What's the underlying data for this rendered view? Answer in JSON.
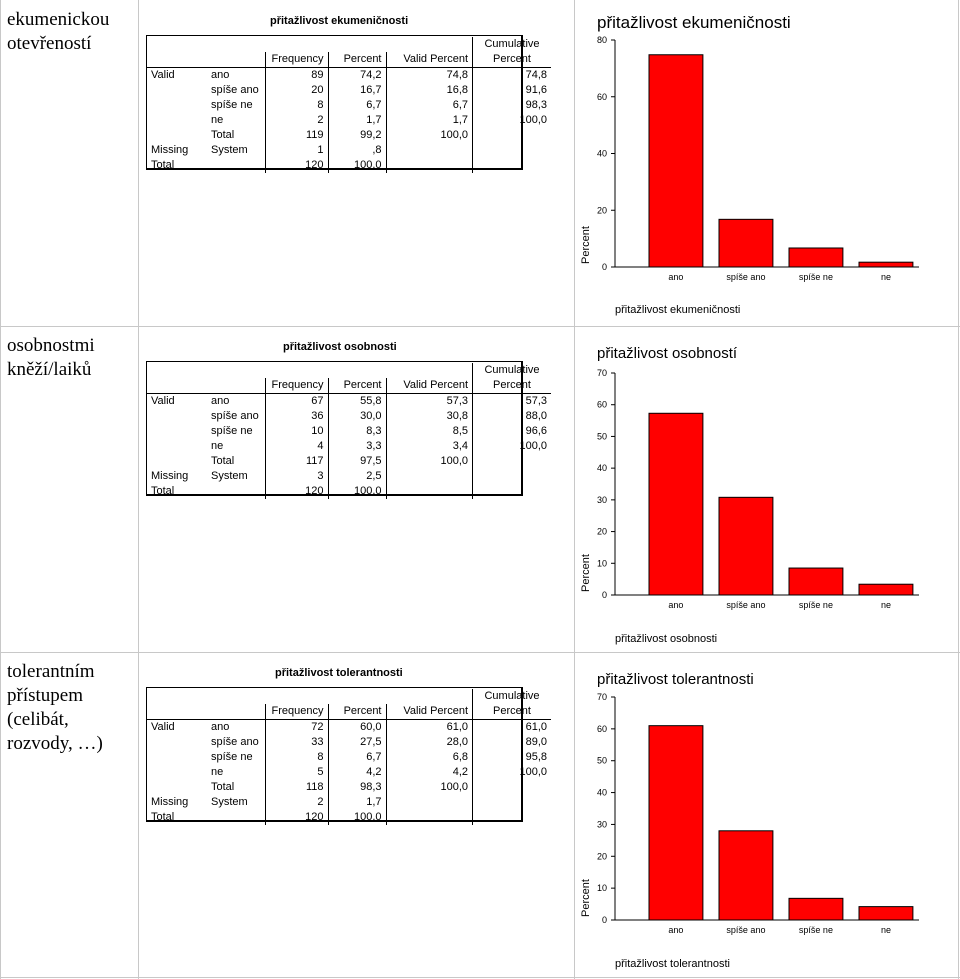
{
  "sections": [
    {
      "row_label": "ekumenickou otevřeností",
      "table": {
        "title": "přitažlivost ekumeničnosti",
        "headers": [
          "Frequency",
          "Percent",
          "Valid Percent",
          "Cumulative",
          "Percent"
        ],
        "rows": [
          [
            "Valid",
            "ano",
            "89",
            "74,2",
            "74,8",
            "74,8"
          ],
          [
            "",
            "spíše ano",
            "20",
            "16,7",
            "16,8",
            "91,6"
          ],
          [
            "",
            "spíše ne",
            "8",
            "6,7",
            "6,7",
            "98,3"
          ],
          [
            "",
            "ne",
            "2",
            "1,7",
            "1,7",
            "100,0"
          ],
          [
            "",
            "Total",
            "119",
            "99,2",
            "100,0",
            ""
          ],
          [
            "Missing",
            "System",
            "1",
            ",8",
            "",
            ""
          ],
          [
            "Total",
            "",
            "120",
            "100,0",
            "",
            ""
          ]
        ]
      },
      "chart_data": {
        "type": "bar",
        "title": "přitažlivost ekumeničnosti",
        "xlabel": "přitažlivost ekumeničnosti",
        "ylabel": "Percent",
        "categories": [
          "ano",
          "spíše ano",
          "spíše ne",
          "ne"
        ],
        "values": [
          74.8,
          16.8,
          6.7,
          1.7
        ],
        "ylim": [
          0,
          80
        ],
        "yticks": [
          "0",
          "20",
          "40",
          "60",
          "80"
        ],
        "bar_color": "#ff0000"
      }
    },
    {
      "row_label": "osobnostmi kněží/laiků",
      "table": {
        "title": "přitažlivost osobnosti",
        "headers": [
          "Frequency",
          "Percent",
          "Valid Percent",
          "Cumulative",
          "Percent"
        ],
        "rows": [
          [
            "Valid",
            "ano",
            "67",
            "55,8",
            "57,3",
            "57,3"
          ],
          [
            "",
            "spíše ano",
            "36",
            "30,0",
            "30,8",
            "88,0"
          ],
          [
            "",
            "spíše ne",
            "10",
            "8,3",
            "8,5",
            "96,6"
          ],
          [
            "",
            "ne",
            "4",
            "3,3",
            "3,4",
            "100,0"
          ],
          [
            "",
            "Total",
            "117",
            "97,5",
            "100,0",
            ""
          ],
          [
            "Missing",
            "System",
            "3",
            "2,5",
            "",
            ""
          ],
          [
            "Total",
            "",
            "120",
            "100,0",
            "",
            ""
          ]
        ]
      },
      "chart_data": {
        "type": "bar",
        "title": "přitažlivost osobností",
        "xlabel": "přitažlivost osobnosti",
        "ylabel": "Percent",
        "categories": [
          "ano",
          "spíše ano",
          "spíše ne",
          "ne"
        ],
        "values": [
          57.3,
          30.8,
          8.5,
          3.4
        ],
        "ylim": [
          0,
          70
        ],
        "yticks": [
          "0",
          "10",
          "20",
          "30",
          "40",
          "50",
          "60",
          "70"
        ],
        "bar_color": "#ff0000"
      }
    },
    {
      "row_label": "tolerantním přístupem (celibát, rozvody, …)",
      "table": {
        "title": "přitažlivost tolerantnosti",
        "headers": [
          "Frequency",
          "Percent",
          "Valid Percent",
          "Cumulative",
          "Percent"
        ],
        "rows": [
          [
            "Valid",
            "ano",
            "72",
            "60,0",
            "61,0",
            "61,0"
          ],
          [
            "",
            "spíše ano",
            "33",
            "27,5",
            "28,0",
            "89,0"
          ],
          [
            "",
            "spíše ne",
            "8",
            "6,7",
            "6,8",
            "95,8"
          ],
          [
            "",
            "ne",
            "5",
            "4,2",
            "4,2",
            "100,0"
          ],
          [
            "",
            "Total",
            "118",
            "98,3",
            "100,0",
            ""
          ],
          [
            "Missing",
            "System",
            "2",
            "1,7",
            "",
            ""
          ],
          [
            "Total",
            "",
            "120",
            "100,0",
            "",
            ""
          ]
        ]
      },
      "chart_data": {
        "type": "bar",
        "title": "přitažlivost tolerantnosti",
        "xlabel": "přitažlivost tolerantnosti",
        "ylabel": "Percent",
        "categories": [
          "ano",
          "spíše ano",
          "spíše ne",
          "ne"
        ],
        "values": [
          61.0,
          28.0,
          6.8,
          4.2
        ],
        "ylim": [
          0,
          70
        ],
        "yticks": [
          "0",
          "10",
          "20",
          "30",
          "40",
          "50",
          "60",
          "70"
        ],
        "bar_color": "#ff0000"
      }
    }
  ]
}
